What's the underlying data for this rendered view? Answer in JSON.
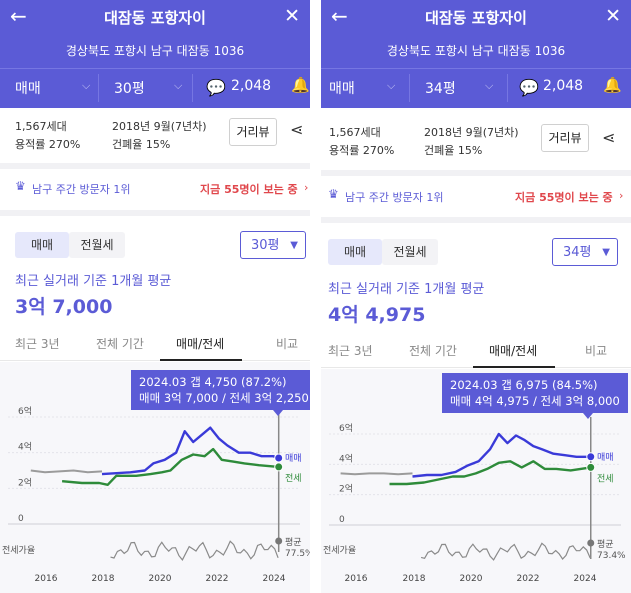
{
  "colors": {
    "accent": "#5b5bd6",
    "sale": "#3a3ad8",
    "lease": "#2e8b3a",
    "past": "#9b9b9b",
    "alert": "#e0474c"
  },
  "panels": [
    {
      "header": {
        "title": "대잠동 포항자이",
        "address": "경상북도 포항시 남구 대잠동 1036",
        "trade_type": "매매",
        "size": "30평",
        "comment_count": "2,048"
      },
      "info": {
        "households": "1,567세대",
        "floor_area_ratio": "용적률 270%",
        "built": "2018년 9월(7년차)",
        "coverage_ratio": "건폐율 15%",
        "distance_view_button": "거리뷰"
      },
      "visitor": {
        "rank": "남구 주간 방문자 1위",
        "now_viewing": "지금 55명이 보는 중"
      },
      "filters": {
        "sale": "매매",
        "lease": "전월세",
        "size": "30평"
      },
      "avg": {
        "label": "최근 실거래 기준 1개월 평균",
        "value": "3억 7,000"
      },
      "tabs": [
        "최근 3년",
        "전체 기간",
        "매매/전세",
        "비교"
      ],
      "tooltip": {
        "line1": "2024.03  갭 4,750 (87.2%)",
        "line2": "매매 3억 7,000 / 전세 3억 2,250"
      },
      "chart_data": {
        "type": "line",
        "yticks": [
          "6억",
          "4억",
          "2억",
          "0"
        ],
        "ylim": [
          0,
          6
        ],
        "xticks": [
          "2016",
          "2018",
          "2020",
          "2022",
          "2024"
        ],
        "legend": [
          "매매",
          "전세"
        ],
        "ratio_label": "전세가율",
        "ratio_avg_label": "평균",
        "ratio_avg_value": "77.5%",
        "series": [
          {
            "name": "매매",
            "points": [
              [
                2018.0,
                2.8
              ],
              [
                2018.5,
                2.85
              ],
              [
                2019.0,
                2.9
              ],
              [
                2019.5,
                3.0
              ],
              [
                2019.8,
                3.4
              ],
              [
                2020.2,
                3.6
              ],
              [
                2020.6,
                4.0
              ],
              [
                2020.9,
                5.2
              ],
              [
                2021.2,
                4.6
              ],
              [
                2021.5,
                5.0
              ],
              [
                2021.8,
                5.4
              ],
              [
                2022.1,
                4.8
              ],
              [
                2022.4,
                4.4
              ],
              [
                2022.8,
                4.0
              ],
              [
                2023.2,
                4.0
              ],
              [
                2023.6,
                3.8
              ],
              [
                2024.0,
                3.8
              ],
              [
                2024.2,
                3.7
              ]
            ]
          },
          {
            "name": "전세",
            "points": [
              [
                2016.6,
                2.4
              ],
              [
                2017.3,
                2.3
              ],
              [
                2017.9,
                2.3
              ],
              [
                2018.2,
                2.2
              ],
              [
                2018.5,
                2.7
              ],
              [
                2019.2,
                2.7
              ],
              [
                2019.7,
                2.8
              ],
              [
                2020.1,
                2.9
              ],
              [
                2020.4,
                3.0
              ],
              [
                2020.8,
                3.6
              ],
              [
                2021.2,
                3.9
              ],
              [
                2021.6,
                3.8
              ],
              [
                2021.9,
                4.2
              ],
              [
                2022.2,
                3.6
              ],
              [
                2022.6,
                3.5
              ],
              [
                2023.0,
                3.4
              ],
              [
                2023.5,
                3.3
              ],
              [
                2024.2,
                3.2
              ]
            ]
          },
          {
            "name": "past",
            "points": [
              [
                2015.5,
                3.0
              ],
              [
                2016.0,
                2.9
              ],
              [
                2016.5,
                2.95
              ],
              [
                2017.0,
                3.0
              ],
              [
                2017.5,
                2.9
              ],
              [
                2018.0,
                2.95
              ]
            ]
          }
        ]
      }
    },
    {
      "header": {
        "title": "대잠동 포항자이",
        "address": "경상북도 포항시 남구 대잠동 1036",
        "trade_type": "매매",
        "size": "34평",
        "comment_count": "2,048"
      },
      "info": {
        "households": "1,567세대",
        "floor_area_ratio": "용적률 270%",
        "built": "2018년 9월(7년차)",
        "coverage_ratio": "건폐율 15%",
        "distance_view_button": "거리뷰"
      },
      "visitor": {
        "rank": "남구 주간 방문자 1위",
        "now_viewing": "지금 55명이 보는 중"
      },
      "filters": {
        "sale": "매매",
        "lease": "전월세",
        "size": "34평"
      },
      "avg": {
        "label": "최근 실거래 기준 1개월 평균",
        "value": "4억 4,975"
      },
      "tabs": [
        "최근 3년",
        "전체 기간",
        "매매/전세",
        "비교"
      ],
      "tooltip": {
        "line1": "2024.03  갭 6,975 (84.5%)",
        "line2": "매매 4억 4,975 / 전세 3억 8,000"
      },
      "chart_data": {
        "type": "line",
        "yticks": [
          "6억",
          "4억",
          "2억",
          "0"
        ],
        "ylim": [
          0,
          6
        ],
        "xticks": [
          "2016",
          "2018",
          "2020",
          "2022",
          "2024"
        ],
        "legend": [
          "매매",
          "전세"
        ],
        "ratio_label": "전세가율",
        "ratio_avg_label": "평균",
        "ratio_avg_value": "73.4%",
        "series": [
          {
            "name": "매매",
            "points": [
              [
                2018.0,
                3.2
              ],
              [
                2018.5,
                3.3
              ],
              [
                2019.0,
                3.3
              ],
              [
                2019.5,
                3.5
              ],
              [
                2019.9,
                3.9
              ],
              [
                2020.3,
                4.2
              ],
              [
                2020.7,
                5.0
              ],
              [
                2021.0,
                6.0
              ],
              [
                2021.3,
                5.4
              ],
              [
                2021.6,
                5.9
              ],
              [
                2021.9,
                5.6
              ],
              [
                2022.2,
                5.2
              ],
              [
                2022.5,
                5.0
              ],
              [
                2022.9,
                4.7
              ],
              [
                2023.3,
                4.6
              ],
              [
                2023.7,
                4.5
              ],
              [
                2024.2,
                4.5
              ]
            ]
          },
          {
            "name": "전세",
            "points": [
              [
                2017.2,
                2.7
              ],
              [
                2017.8,
                2.7
              ],
              [
                2018.4,
                2.8
              ],
              [
                2018.9,
                3.0
              ],
              [
                2019.4,
                3.2
              ],
              [
                2019.8,
                3.2
              ],
              [
                2020.2,
                3.4
              ],
              [
                2020.6,
                3.7
              ],
              [
                2021.0,
                4.1
              ],
              [
                2021.4,
                4.2
              ],
              [
                2021.8,
                3.8
              ],
              [
                2022.2,
                4.2
              ],
              [
                2022.6,
                3.7
              ],
              [
                2023.0,
                3.7
              ],
              [
                2023.5,
                3.6
              ],
              [
                2024.2,
                3.8
              ]
            ]
          },
          {
            "name": "past",
            "points": [
              [
                2015.5,
                3.4
              ],
              [
                2016.0,
                3.35
              ],
              [
                2016.5,
                3.4
              ],
              [
                2017.0,
                3.4
              ],
              [
                2017.5,
                3.35
              ],
              [
                2018.0,
                3.4
              ]
            ]
          }
        ]
      }
    }
  ]
}
